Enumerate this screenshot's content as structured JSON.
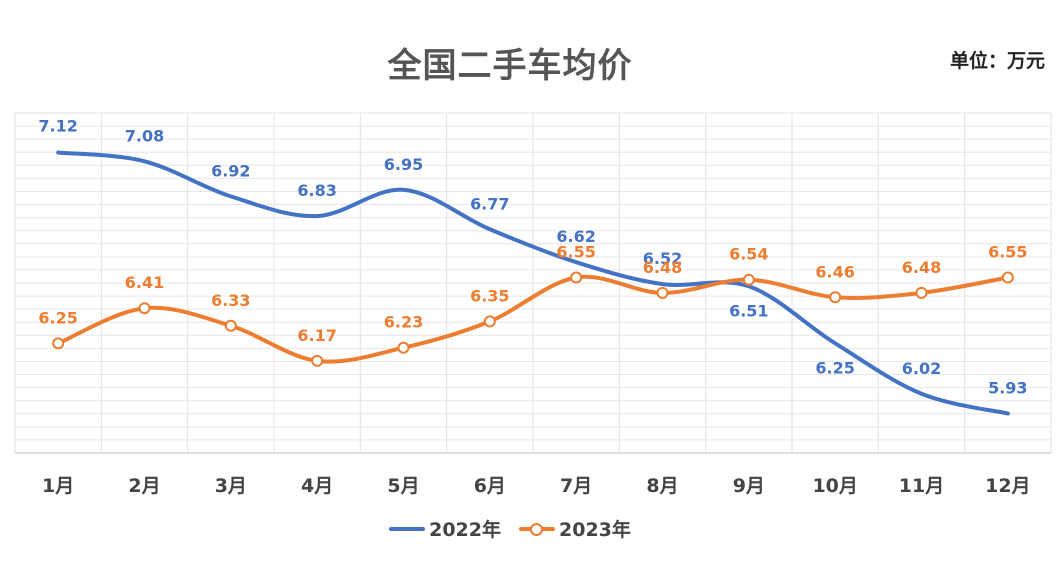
{
  "chart_data": {
    "type": "line",
    "title": "全国二手车均价",
    "unit_label": "单位：万元",
    "categories": [
      "1月",
      "2月",
      "3月",
      "4月",
      "5月",
      "6月",
      "7月",
      "8月",
      "9月",
      "10月",
      "11月",
      "12月"
    ],
    "series": [
      {
        "name": "2022年",
        "color": "#4472C4",
        "values": [
          7.12,
          7.08,
          6.92,
          6.83,
          6.95,
          6.77,
          6.62,
          6.52,
          6.51,
          6.25,
          6.02,
          5.93
        ],
        "value_labels": [
          "7.12",
          "7.08",
          "6.92",
          "6.83",
          "6.95",
          "6.77",
          "6.62",
          "6.52",
          "6.51",
          "6.25",
          "6.02",
          "5.93"
        ]
      },
      {
        "name": "2023年",
        "color": "#ED7D31",
        "values": [
          6.25,
          6.41,
          6.33,
          6.17,
          6.23,
          6.35,
          6.55,
          6.48,
          6.54,
          6.46,
          6.48,
          6.55
        ],
        "value_labels": [
          "6.25",
          "6.41",
          "6.33",
          "6.17",
          "6.23",
          "6.35",
          "6.55",
          "6.48",
          "6.54",
          "6.46",
          "6.48",
          "6.55"
        ]
      }
    ],
    "ylim": [
      5.75,
      7.3
    ],
    "grid": true,
    "legend_position": "bottom",
    "smooth": true
  }
}
